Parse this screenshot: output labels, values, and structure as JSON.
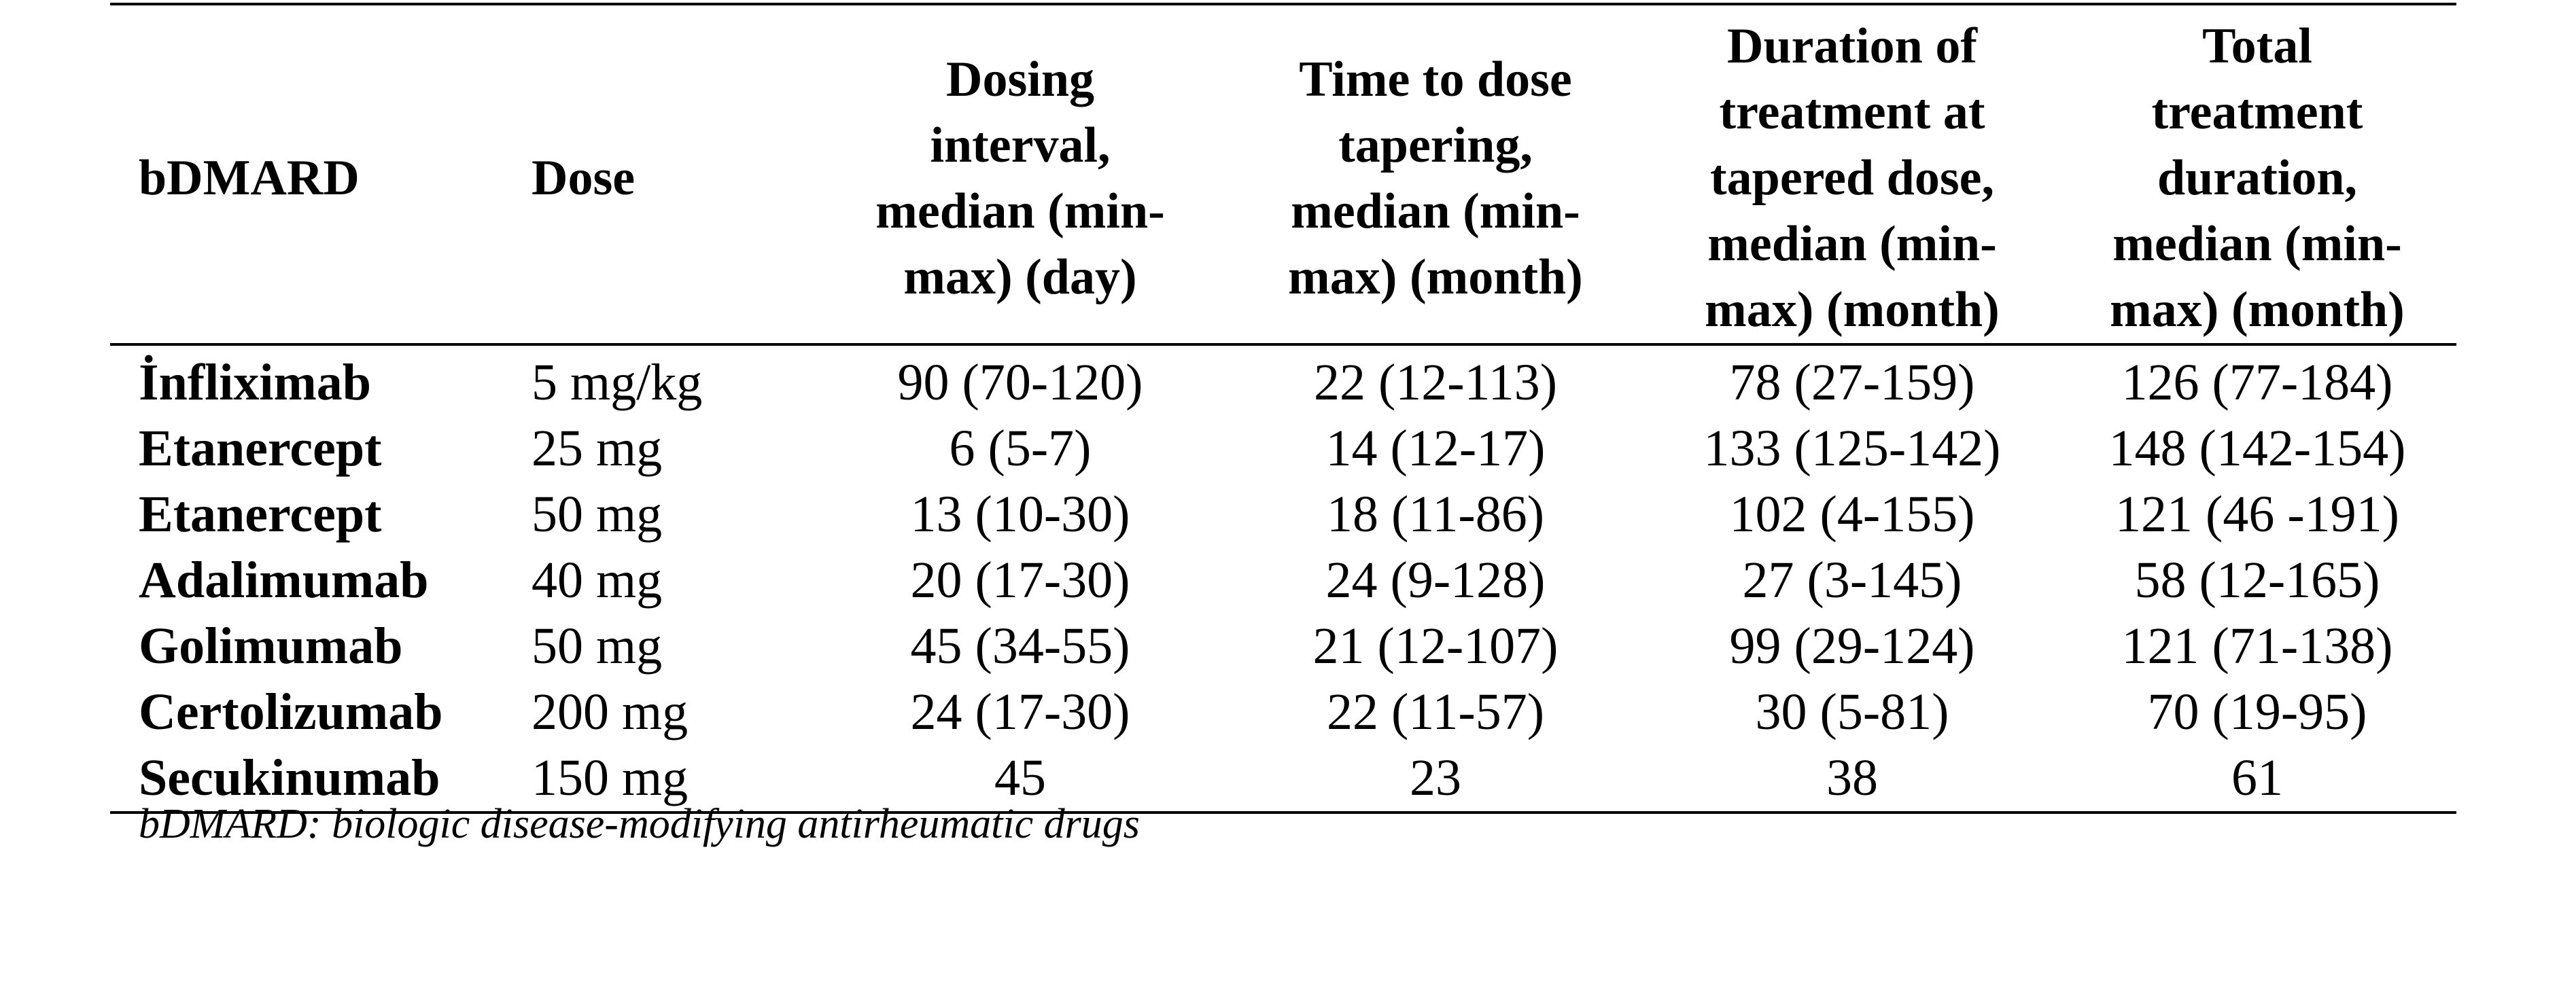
{
  "table": {
    "headers": [
      {
        "lines": [
          "bDMARD"
        ]
      },
      {
        "lines": [
          "Dose"
        ]
      },
      {
        "lines": [
          "Dosing",
          "interval,",
          "median (min-",
          "max) (day)"
        ]
      },
      {
        "lines": [
          "Time to dose",
          "tapering,",
          "median (min-",
          "max) (month)"
        ]
      },
      {
        "lines": [
          "Duration of",
          "treatment at",
          "tapered dose,",
          "median (min-",
          "max) (month)"
        ]
      },
      {
        "lines": [
          "Total",
          "treatment",
          "duration,",
          "median (min-",
          "max) (month)"
        ]
      }
    ],
    "rows": [
      {
        "drug": "İnfliximab",
        "dose": "5 mg/kg",
        "interval": "90 (70-120)",
        "time_to_taper": "22 (12-113)",
        "duration_tapered": "78 (27-159)",
        "total": "126 (77-184)"
      },
      {
        "drug": "Etanercept",
        "dose": "25 mg",
        "interval": "6 (5-7)",
        "time_to_taper": "14 (12-17)",
        "duration_tapered": "133 (125-142)",
        "total": "148 (142-154)"
      },
      {
        "drug": "Etanercept",
        "dose": "50 mg",
        "interval": "13 (10-30)",
        "time_to_taper": "18 (11-86)",
        "duration_tapered": "102 (4-155)",
        "total": "121 (46 -191)"
      },
      {
        "drug": "Adalimumab",
        "dose": "40 mg",
        "interval": "20 (17-30)",
        "time_to_taper": "24 (9-128)",
        "duration_tapered": "27 (3-145)",
        "total": "58 (12-165)"
      },
      {
        "drug": "Golimumab",
        "dose": "50 mg",
        "interval": "45 (34-55)",
        "time_to_taper": "21 (12-107)",
        "duration_tapered": "99 (29-124)",
        "total": "121 (71-138)"
      },
      {
        "drug": "Certolizumab",
        "dose": "200 mg",
        "interval": "24 (17-30)",
        "time_to_taper": "22 (11-57)",
        "duration_tapered": "30 (5-81)",
        "total": "70 (19-95)"
      },
      {
        "drug": "Secukinumab",
        "dose": "150 mg",
        "interval": "45",
        "time_to_taper": "23",
        "duration_tapered": "38",
        "total": "61"
      }
    ]
  },
  "footnote": "bDMARD: biologic disease-modifying antirheumatic drugs"
}
